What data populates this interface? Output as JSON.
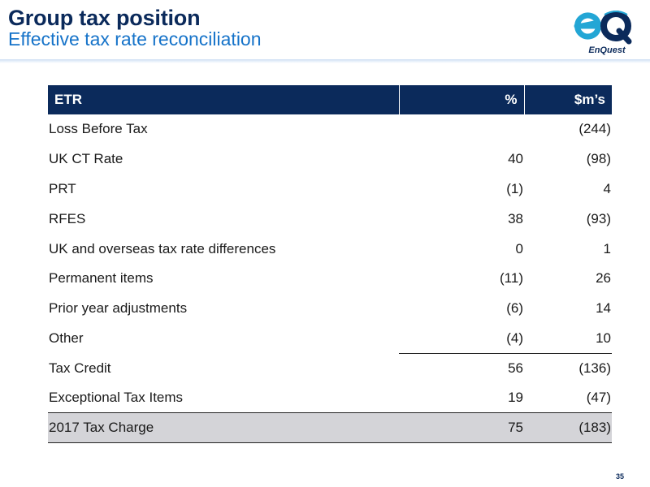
{
  "header": {
    "title": "Group tax position",
    "subtitle": "Effective tax rate reconciliation"
  },
  "logo": {
    "text": "EnQuest",
    "primary_color": "#0b2a5b",
    "accent_color": "#23a6d5"
  },
  "table": {
    "columns": [
      "ETR",
      "%",
      "$m’s"
    ],
    "rows": [
      {
        "label": "Loss Before Tax",
        "pct": "",
        "value": "(244)"
      },
      {
        "label": "UK CT Rate",
        "pct": "40",
        "value": "(98)"
      },
      {
        "label": "PRT",
        "pct": "(1)",
        "value": "4"
      },
      {
        "label": "RFES",
        "pct": "38",
        "value": "(93)"
      },
      {
        "label": "UK and overseas tax rate differences",
        "pct": "0",
        "value": "1"
      },
      {
        "label": "Permanent items",
        "pct": "(11)",
        "value": "26"
      },
      {
        "label": "Prior year adjustments",
        "pct": "(6)",
        "value": "14"
      },
      {
        "label": "Other",
        "pct": "(4)",
        "value": "10"
      },
      {
        "label": "Tax Credit",
        "pct": "56",
        "value": "(136)"
      },
      {
        "label": "Exceptional Tax Items",
        "pct": "19",
        "value": "(47)"
      },
      {
        "label": "2017 Tax Charge",
        "pct": "75",
        "value": "(183)"
      }
    ]
  },
  "page_number": "35"
}
